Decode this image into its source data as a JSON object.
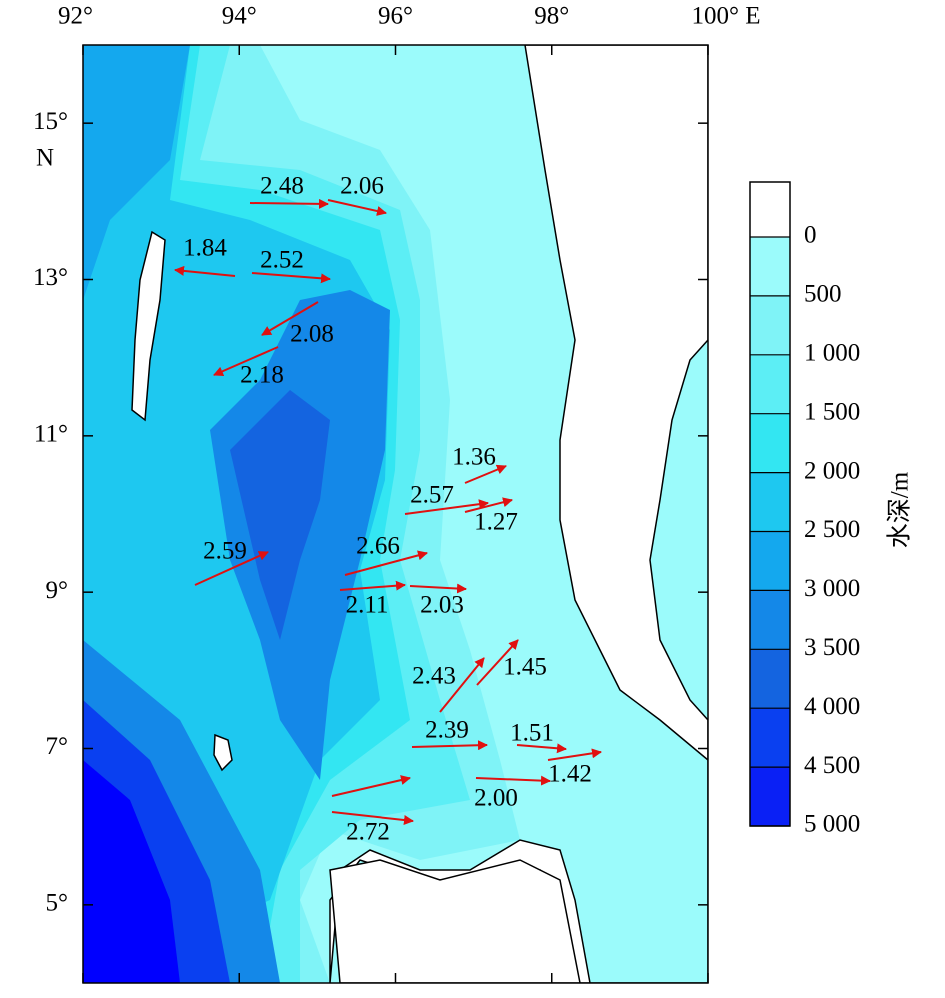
{
  "map": {
    "lon_ticks": [
      {
        "value": 92,
        "label": "92°"
      },
      {
        "value": 94,
        "label": "94°"
      },
      {
        "value": 96,
        "label": "96°"
      },
      {
        "value": 98,
        "label": "98°"
      },
      {
        "value": 100,
        "label": "100° E"
      }
    ],
    "lat_ticks": [
      {
        "value": 5,
        "label": "5°"
      },
      {
        "value": 7,
        "label": "7°"
      },
      {
        "value": 9,
        "label": "9°"
      },
      {
        "value": 11,
        "label": "11°"
      },
      {
        "value": 13,
        "label": "13°"
      },
      {
        "value": 15,
        "label": "15°"
      }
    ],
    "lat_unit": "N",
    "xlim": [
      92,
      100
    ],
    "ylim": [
      4,
      16
    ],
    "current_speeds": {
      "values": [
        2.48,
        2.06,
        1.84,
        2.52,
        2.08,
        2.18,
        1.36,
        2.57,
        1.27,
        2.59,
        2.66,
        2.11,
        2.03,
        2.43,
        1.45,
        2.39,
        1.51,
        1.42,
        2.0,
        2.72
      ],
      "value_labels": [
        "2.48",
        "2.06",
        "1.84",
        "2.52",
        "2.08",
        "2.18",
        "1.36",
        "2.57",
        "1.27",
        "2.59",
        "2.66",
        "2.11",
        "2.03",
        "2.43",
        "1.45",
        "2.39",
        "1.51",
        "1.42",
        "2.00",
        "2.72"
      ],
      "color": "#e01010"
    },
    "colorbar": {
      "title": "水深/m",
      "ticks": [
        0,
        500,
        {
          "value": 1000,
          "label": "1 000"
        },
        {
          "value": 1500,
          "label": "1 500"
        },
        {
          "value": 2000,
          "label": "2 000"
        },
        {
          "value": 2500,
          "label": "2 500"
        },
        {
          "value": 3000,
          "label": "3 000"
        },
        {
          "value": 3500,
          "label": "3 500"
        },
        {
          "value": 4000,
          "label": "4 000"
        },
        {
          "value": 4500,
          "label": "4 500"
        },
        {
          "value": 5000,
          "label": "5 000"
        }
      ],
      "lim": [
        0,
        5000
      ],
      "colors": [
        "#ffffff",
        "#9bfbfb",
        "#7ff3f7",
        "#5ceef5",
        "#33e6f2",
        "#1ec8f0",
        "#14a8ee",
        "#1488e8",
        "#1464e0",
        "#0a40f0",
        "#0a20f5",
        "#0000ff"
      ]
    }
  }
}
